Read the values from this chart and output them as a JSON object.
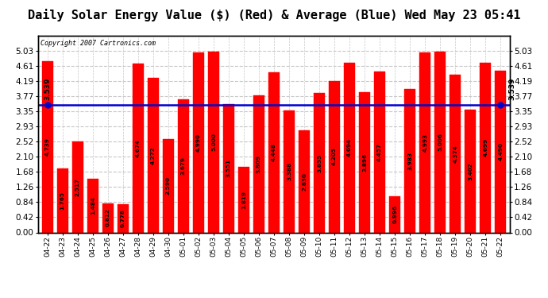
{
  "title": "Daily Solar Energy Value ($) (Red) & Average (Blue) Wed May 23 05:41",
  "copyright": "Copyright 2007 Cartronics.com",
  "categories": [
    "04-22",
    "04-23",
    "04-24",
    "04-25",
    "04-26",
    "04-27",
    "04-28",
    "04-29",
    "04-30",
    "05-01",
    "05-02",
    "05-03",
    "05-04",
    "05-05",
    "05-06",
    "05-07",
    "05-08",
    "05-09",
    "05-10",
    "05-11",
    "05-12",
    "05-13",
    "05-14",
    "05-15",
    "05-16",
    "05-17",
    "05-18",
    "05-19",
    "05-20",
    "05-21",
    "05-22"
  ],
  "values": [
    4.739,
    1.765,
    2.517,
    1.484,
    0.812,
    0.778,
    4.674,
    4.272,
    2.59,
    3.679,
    4.99,
    5.0,
    3.551,
    1.819,
    3.809,
    4.448,
    3.388,
    2.83,
    3.855,
    4.205,
    4.694,
    3.896,
    4.457,
    0.996,
    3.983,
    4.993,
    5.006,
    4.374,
    3.402,
    4.699,
    4.49
  ],
  "average": 3.539,
  "bar_color": "#ff0000",
  "avg_line_color": "#0000cd",
  "background_color": "#ffffff",
  "plot_bg_color": "#ffffff",
  "grid_color": "#c8c8c8",
  "ylim": [
    0.0,
    5.45
  ],
  "yticks": [
    0.0,
    0.42,
    0.84,
    1.26,
    1.68,
    2.1,
    2.52,
    2.93,
    3.35,
    3.77,
    4.19,
    4.61,
    5.03
  ],
  "title_fontsize": 11,
  "avg_label": "3.539"
}
